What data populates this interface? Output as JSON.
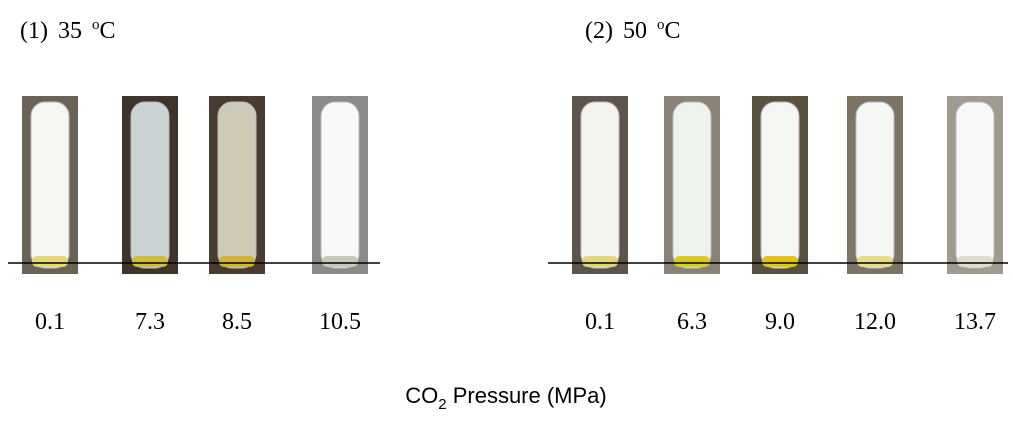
{
  "panels": [
    {
      "label": "(1)",
      "temperature": "35",
      "degree": "o",
      "unit": "C",
      "tubes": [
        "0.1",
        "7.3",
        "8.5",
        "10.5"
      ]
    },
    {
      "label": "(2)",
      "temperature": "50",
      "degree": "o",
      "unit": "C",
      "tubes": [
        "0.1",
        "6.3",
        "9.0",
        "12.0",
        "13.7"
      ]
    }
  ],
  "xlabel": {
    "main": "CO",
    "sub": "2",
    "rest": " Pressure (MPa)"
  }
}
